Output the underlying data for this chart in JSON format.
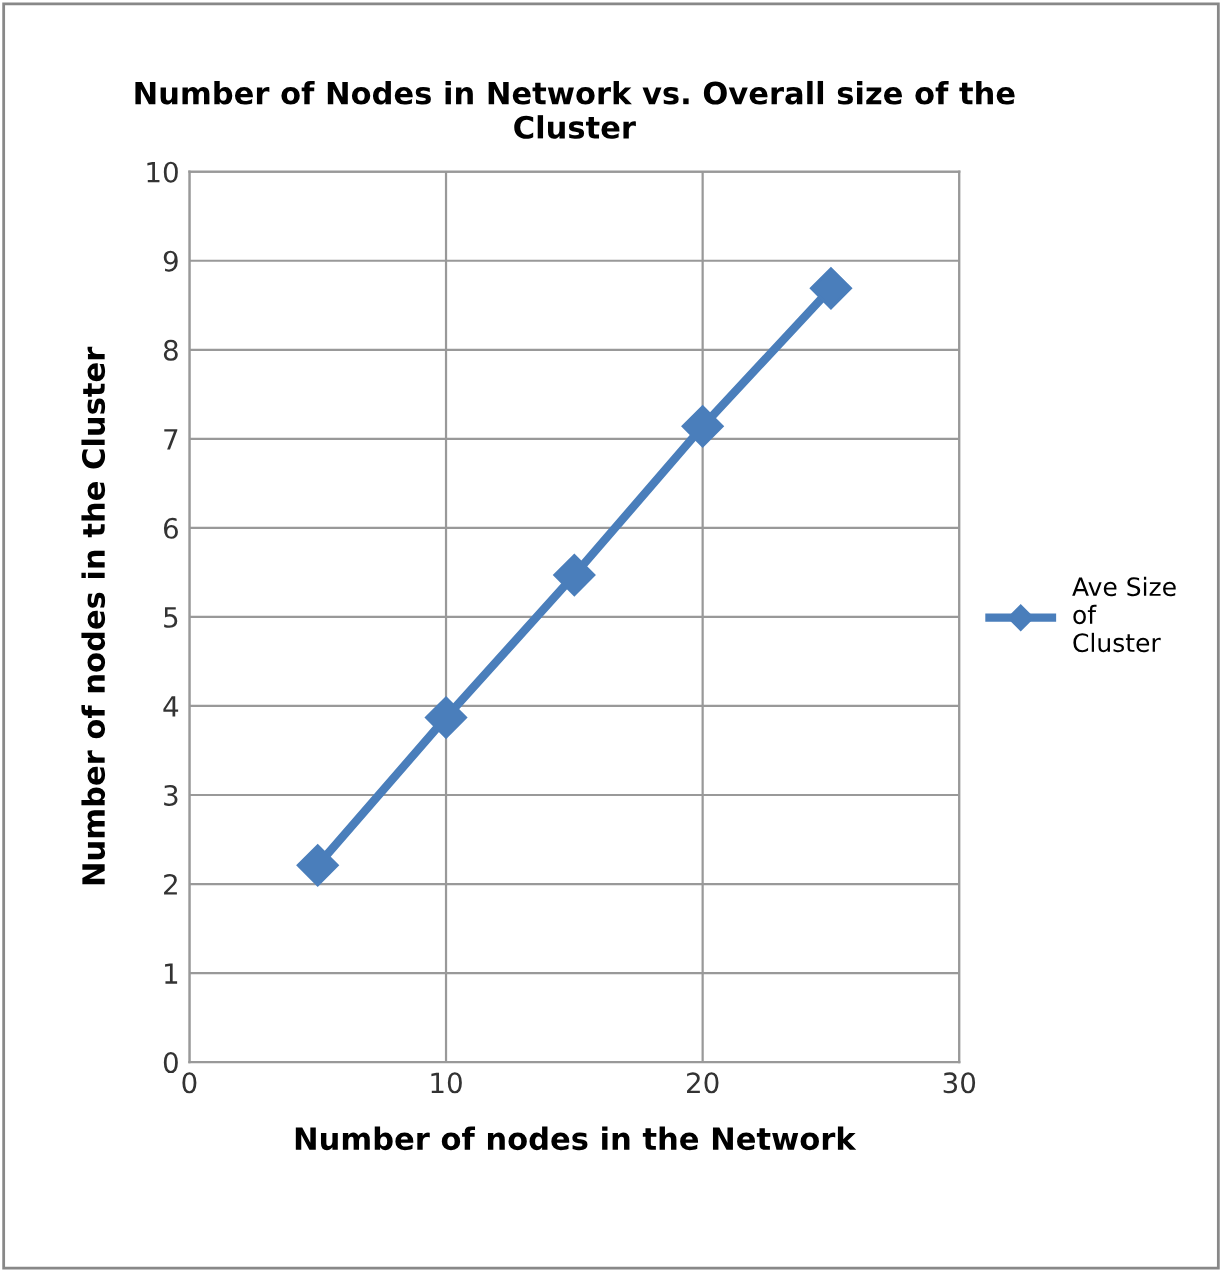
{
  "chart_data": {
    "type": "line",
    "title": "Number of Nodes in Network vs. Overall size of the\nCluster",
    "xlabel": "Number of nodes in the Network",
    "ylabel": "Number of nodes in the Cluster",
    "x": [
      5,
      10,
      15,
      20,
      25
    ],
    "series": [
      {
        "name": "Ave Size\nof\nCluster",
        "color": "#4a7ebb",
        "values": [
          2.21,
          3.87,
          5.47,
          7.14,
          8.69
        ]
      }
    ],
    "xlim": [
      0,
      30
    ],
    "xticks": [
      0,
      10,
      20,
      30
    ],
    "ylim": [
      0,
      10
    ],
    "yticks": [
      0,
      1,
      2,
      3,
      4,
      5,
      6,
      7,
      8,
      9,
      10
    ],
    "grid": true,
    "legend": "right",
    "marker": "diamond",
    "line_style": "solid"
  }
}
